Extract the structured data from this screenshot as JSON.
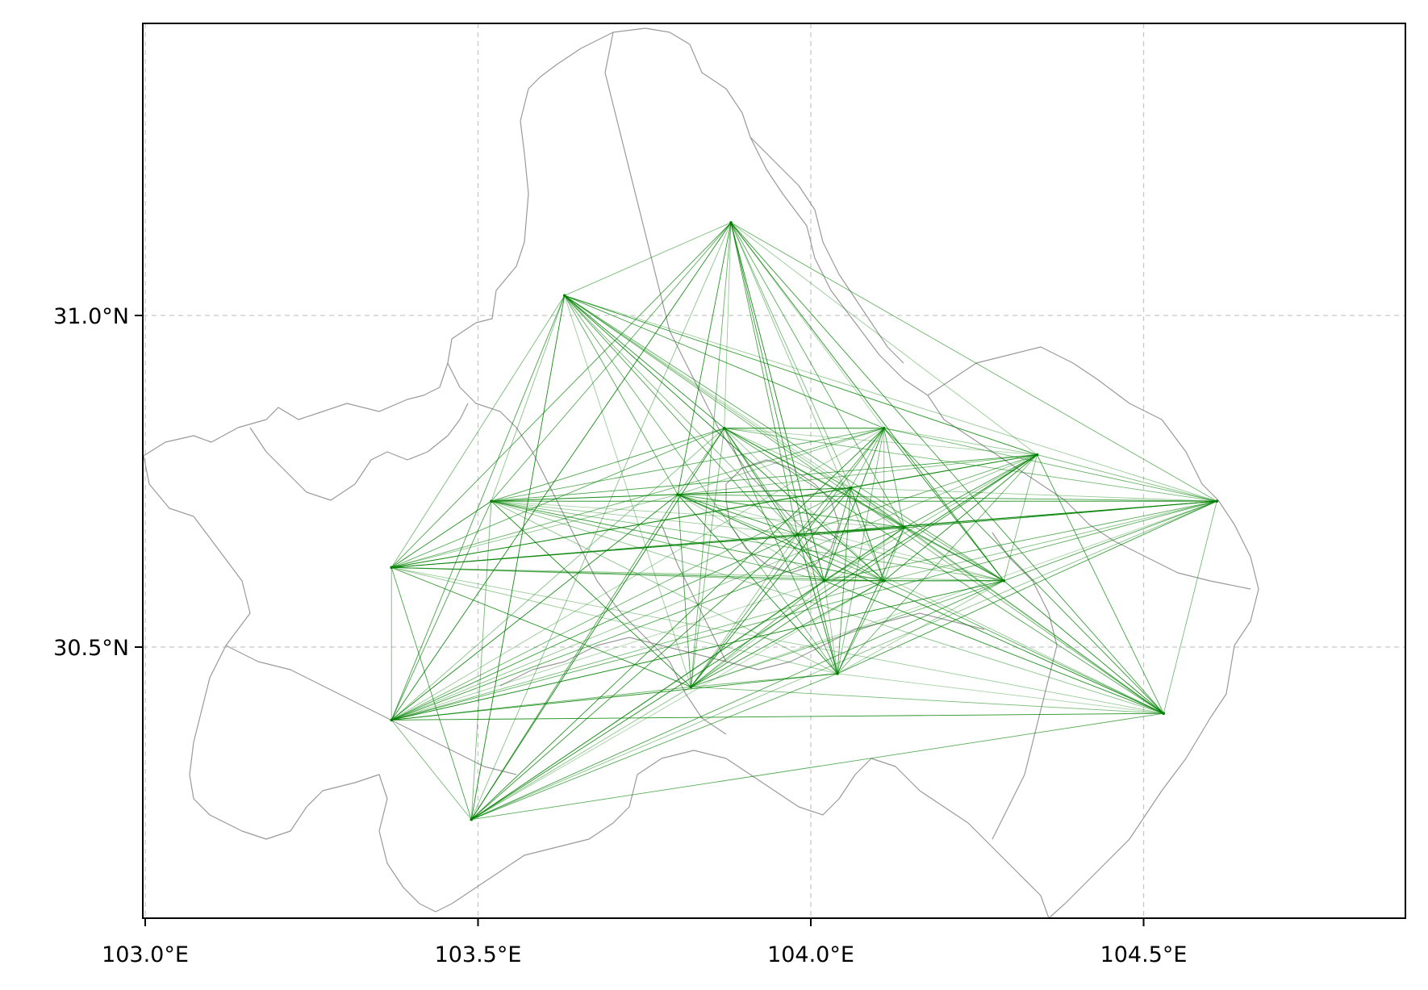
{
  "map": {
    "x_ticks": [
      "103.0°E",
      "103.5°E",
      "104.0°E",
      "104.5°E"
    ],
    "y_ticks": [
      "31.0°N",
      "30.5°N"
    ],
    "colors": {
      "flow": "#008000",
      "boundary": "#9a9a9a",
      "grid": "#c8c8c8",
      "frame": "#000000"
    },
    "nodes": [
      {
        "lon": 103.88,
        "lat": 31.14
      },
      {
        "lon": 103.63,
        "lat": 31.03
      },
      {
        "lon": 103.37,
        "lat": 30.62
      },
      {
        "lon": 103.37,
        "lat": 30.39
      },
      {
        "lon": 103.49,
        "lat": 30.24
      },
      {
        "lon": 103.52,
        "lat": 30.72
      },
      {
        "lon": 103.8,
        "lat": 30.73
      },
      {
        "lon": 103.87,
        "lat": 30.83
      },
      {
        "lon": 103.82,
        "lat": 30.44
      },
      {
        "lon": 104.04,
        "lat": 30.46
      },
      {
        "lon": 104.11,
        "lat": 30.83
      },
      {
        "lon": 104.06,
        "lat": 30.74
      },
      {
        "lon": 103.98,
        "lat": 30.67
      },
      {
        "lon": 104.02,
        "lat": 30.6
      },
      {
        "lon": 104.11,
        "lat": 30.6
      },
      {
        "lon": 104.14,
        "lat": 30.68
      },
      {
        "lon": 104.29,
        "lat": 30.6
      },
      {
        "lon": 104.34,
        "lat": 30.79
      },
      {
        "lon": 104.61,
        "lat": 30.72
      },
      {
        "lon": 104.53,
        "lat": 30.4
      }
    ]
  }
}
